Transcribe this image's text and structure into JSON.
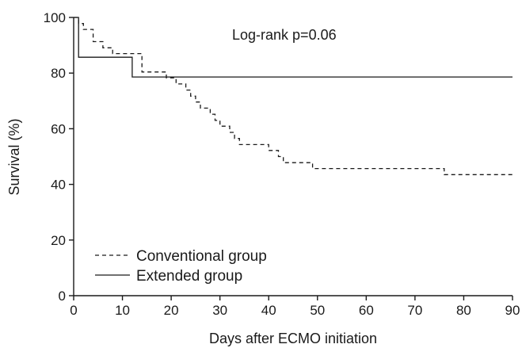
{
  "chart_data": {
    "type": "line",
    "xlabel": "Days after ECMO initiation",
    "ylabel": "Survival (%)",
    "xlim": [
      0,
      90
    ],
    "ylim": [
      0,
      100
    ],
    "xticks": [
      "0",
      "10",
      "20",
      "30",
      "40",
      "50",
      "60",
      "70",
      "80",
      "90"
    ],
    "yticks": [
      "0",
      "20",
      "40",
      "60",
      "80",
      "100"
    ],
    "annotation": "Log-rank p=0.06",
    "legend_position": "bottom-left",
    "grid": false,
    "series": [
      {
        "name": "Conventional group",
        "style": "dashed",
        "steps": [
          [
            0,
            100
          ],
          [
            1,
            97.8
          ],
          [
            2,
            95.7
          ],
          [
            4,
            91.3
          ],
          [
            6,
            89.1
          ],
          [
            8,
            87.0
          ],
          [
            14,
            80.4
          ],
          [
            19,
            78.3
          ],
          [
            21,
            76.1
          ],
          [
            23,
            73.9
          ],
          [
            24,
            71.7
          ],
          [
            25,
            69.6
          ],
          [
            26,
            67.4
          ],
          [
            28,
            65.2
          ],
          [
            29,
            63.0
          ],
          [
            30,
            60.9
          ],
          [
            32,
            58.7
          ],
          [
            33,
            56.5
          ],
          [
            34,
            54.3
          ],
          [
            40,
            52.2
          ],
          [
            42,
            50.0
          ],
          [
            43,
            47.8
          ],
          [
            49,
            45.7
          ],
          [
            76,
            43.5
          ],
          [
            90,
            43.5
          ]
        ]
      },
      {
        "name": "Extended group",
        "style": "solid",
        "steps": [
          [
            0,
            100
          ],
          [
            1,
            85.7
          ],
          [
            12,
            78.6
          ],
          [
            90,
            78.6
          ]
        ]
      }
    ]
  }
}
